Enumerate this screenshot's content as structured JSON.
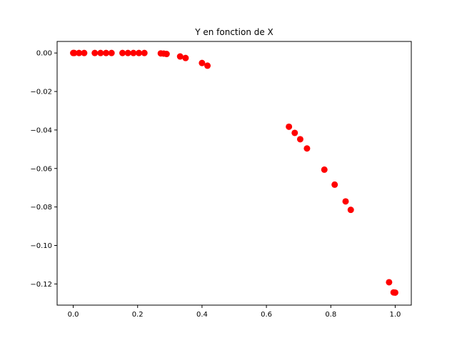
{
  "chart_data": {
    "type": "scatter",
    "title": "Y en fonction de X",
    "xlabel": "",
    "ylabel": "",
    "xlim": [
      -0.05,
      1.05
    ],
    "ylim": [
      -0.131,
      0.006
    ],
    "x_ticks": [
      0.0,
      0.2,
      0.4,
      0.6,
      0.8,
      1.0
    ],
    "x_tick_labels": [
      "0.0",
      "0.2",
      "0.4",
      "0.6",
      "0.8",
      "1.0"
    ],
    "y_ticks": [
      0.0,
      -0.02,
      -0.04,
      -0.06,
      -0.08,
      -0.1,
      -0.12
    ],
    "y_tick_labels": [
      "0.00",
      "−0.02",
      "−0.04",
      "−0.06",
      "−0.08",
      "−0.10",
      "−0.12"
    ],
    "grid": false,
    "marker_color": "#ff0000",
    "points": [
      {
        "x": 0.0,
        "y": 0.0
      },
      {
        "x": 0.003,
        "y": 0.0
      },
      {
        "x": 0.018,
        "y": 0.0
      },
      {
        "x": 0.034,
        "y": 0.0
      },
      {
        "x": 0.067,
        "y": 0.0
      },
      {
        "x": 0.085,
        "y": 0.0
      },
      {
        "x": 0.102,
        "y": 0.0
      },
      {
        "x": 0.119,
        "y": 0.0
      },
      {
        "x": 0.153,
        "y": 0.0
      },
      {
        "x": 0.17,
        "y": 0.0
      },
      {
        "x": 0.187,
        "y": 0.0
      },
      {
        "x": 0.204,
        "y": 0.0
      },
      {
        "x": 0.221,
        "y": 0.0
      },
      {
        "x": 0.272,
        "y": -0.0002
      },
      {
        "x": 0.281,
        "y": -0.0003
      },
      {
        "x": 0.29,
        "y": -0.0005
      },
      {
        "x": 0.332,
        "y": -0.0018
      },
      {
        "x": 0.349,
        "y": -0.0026
      },
      {
        "x": 0.4,
        "y": -0.0052
      },
      {
        "x": 0.417,
        "y": -0.0066
      },
      {
        "x": 0.67,
        "y": -0.0383
      },
      {
        "x": 0.688,
        "y": -0.0415
      },
      {
        "x": 0.705,
        "y": -0.0448
      },
      {
        "x": 0.726,
        "y": -0.0496
      },
      {
        "x": 0.78,
        "y": -0.0606
      },
      {
        "x": 0.812,
        "y": -0.0684
      },
      {
        "x": 0.846,
        "y": -0.0771
      },
      {
        "x": 0.862,
        "y": -0.0815
      },
      {
        "x": 0.981,
        "y": -0.1191
      },
      {
        "x": 0.995,
        "y": -0.1244
      },
      {
        "x": 1.0,
        "y": -0.1245
      }
    ]
  }
}
